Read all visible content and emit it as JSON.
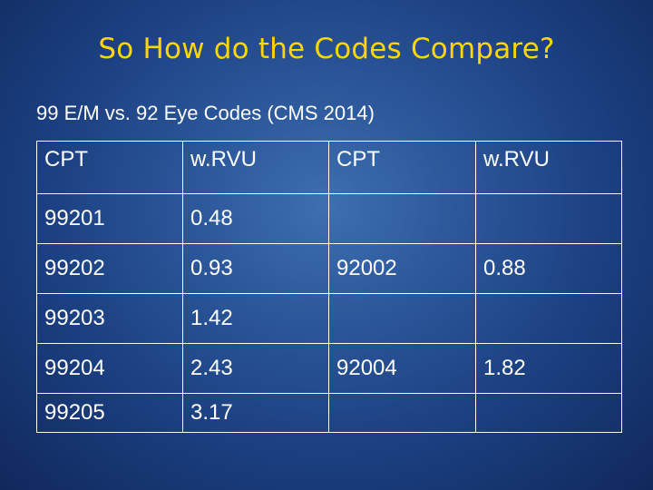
{
  "slide": {
    "title": "So How do the Codes Compare?",
    "subtitle": "99 E/M vs. 92 Eye Codes (CMS 2014)"
  },
  "table": {
    "headers": [
      "CPT",
      "w.RVU",
      "CPT",
      "w.RVU"
    ],
    "rows": [
      [
        "99201",
        "0.48",
        "",
        ""
      ],
      [
        "99202",
        "0.93",
        "92002",
        "0.88"
      ],
      [
        "99203",
        "1.42",
        "",
        ""
      ],
      [
        "99204",
        "2.43",
        "92004",
        "1.82"
      ],
      [
        "99205",
        "3.17",
        "",
        ""
      ]
    ]
  }
}
